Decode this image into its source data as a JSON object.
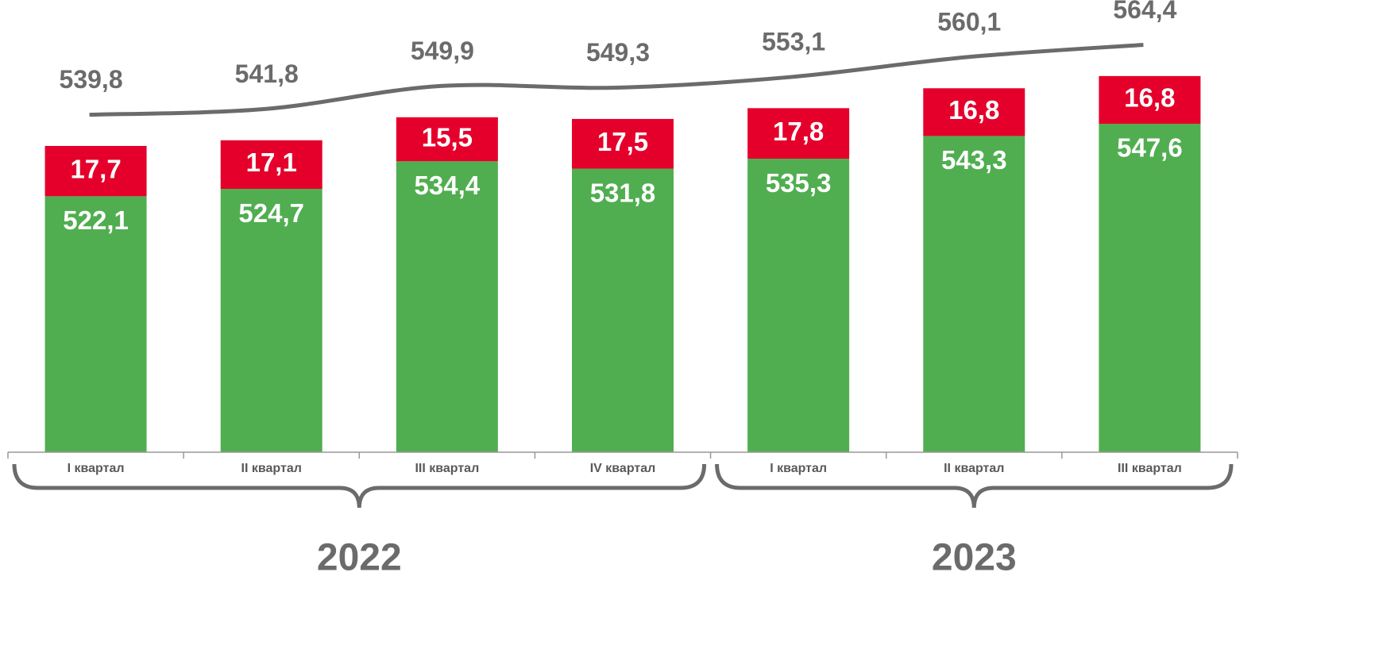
{
  "chart_data": {
    "type": "bar",
    "categories": [
      "I квартал",
      "II квартал",
      "III квартал",
      "IV квартал",
      "I квартал",
      "II квартал",
      "III квартал"
    ],
    "years": [
      "2022",
      "2023"
    ],
    "ylim": [
      432,
      580
    ],
    "y2lim": [
      421,
      569
    ],
    "series": [
      {
        "color": "#50ae50",
        "values": [
          522.1,
          524.7,
          534.4,
          531.8,
          535.3,
          543.3,
          547.6
        ],
        "value_labels": [
          "522,1",
          "524,7",
          "534,4",
          "531,8",
          "535,3",
          "543,3",
          "547,6"
        ]
      },
      {
        "color": "#e4002b",
        "values": [
          17.7,
          17.1,
          15.5,
          17.5,
          17.8,
          16.8,
          16.8
        ],
        "value_labels": [
          "17,7",
          "17,1",
          "15,5",
          "17,5",
          "17,8",
          "16,8",
          "16,8"
        ]
      },
      {
        "type": "line",
        "axis": "y2",
        "color": "#6b6b6b",
        "values": [
          539.8,
          541.8,
          549.9,
          549.3,
          553.1,
          560.1,
          564.4
        ],
        "value_labels": [
          "539,8",
          "541,8",
          "549,9",
          "549,3",
          "553,1",
          "560,1",
          "564,4"
        ]
      }
    ]
  }
}
